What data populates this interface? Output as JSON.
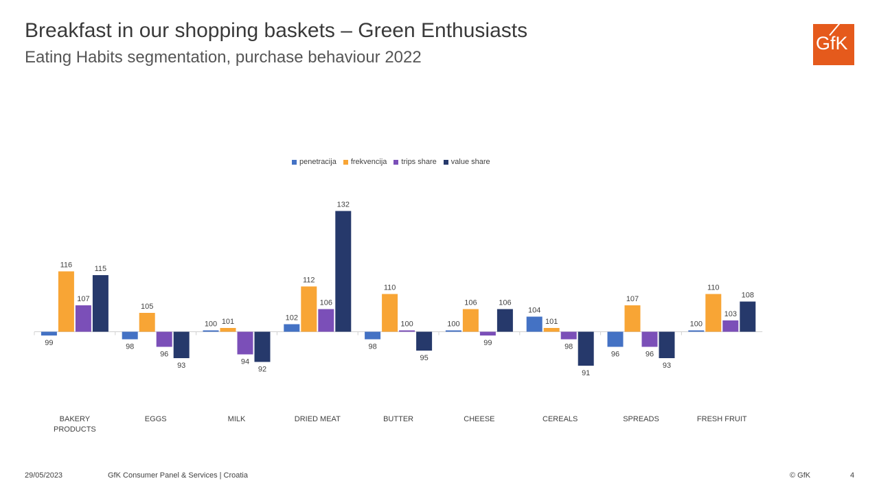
{
  "header": {
    "title": "Breakfast in our shopping baskets – Green Enthusiasts",
    "subtitle": "Eating Habits segmentation, purchase behaviour 2022"
  },
  "logo": {
    "text": "GfK",
    "color": "#e55a1c"
  },
  "footer": {
    "date": "29/05/2023",
    "source": "GfK Consumer Panel & Services | Croatia",
    "copyright": "© GfK",
    "page": "4"
  },
  "chart_data": {
    "type": "bar",
    "baseline": 100,
    "categories": [
      "BAKERY PRODUCTS",
      "EGGS",
      "MILK",
      "DRIED MEAT",
      "BUTTER",
      "CHEESE",
      "CEREALS",
      "SPREADS",
      "FRESH FRUIT"
    ],
    "series": [
      {
        "name": "penetracija",
        "color": "#4472c4",
        "values": [
          99,
          98,
          100,
          102,
          98,
          100,
          104,
          96,
          100
        ]
      },
      {
        "name": "frekvencija",
        "color": "#f8a535",
        "values": [
          116,
          105,
          101,
          112,
          110,
          106,
          101,
          107,
          110
        ]
      },
      {
        "name": "trips share",
        "color": "#7b4fb8",
        "values": [
          107,
          96,
          94,
          106,
          100,
          99,
          98,
          96,
          103
        ]
      },
      {
        "name": "value share",
        "color": "#26396b",
        "values": [
          115,
          93,
          92,
          132,
          95,
          106,
          91,
          93,
          108
        ]
      }
    ],
    "legend_position": "top-center",
    "grid": false
  }
}
